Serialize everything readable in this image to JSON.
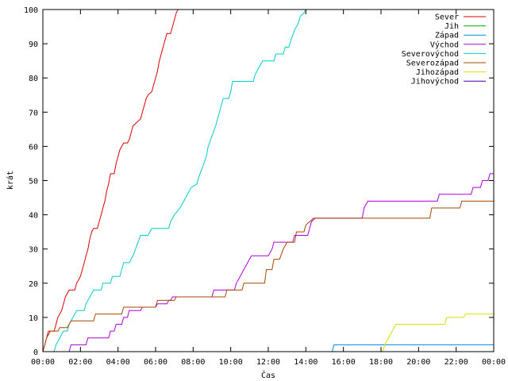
{
  "chart_data": {
    "type": "line",
    "xlabel": "Čas",
    "ylabel": "krát",
    "xlim": [
      0,
      24
    ],
    "ylim": [
      0,
      100
    ],
    "grid": false,
    "legend_position": "top-right",
    "x_ticks": [
      {
        "value": 0,
        "label": "00:00"
      },
      {
        "value": 2,
        "label": "02:00"
      },
      {
        "value": 4,
        "label": "04:00"
      },
      {
        "value": 6,
        "label": "06:00"
      },
      {
        "value": 8,
        "label": "08:00"
      },
      {
        "value": 10,
        "label": "10:00"
      },
      {
        "value": 12,
        "label": "12:00"
      },
      {
        "value": 14,
        "label": "14:00"
      },
      {
        "value": 16,
        "label": "16:00"
      },
      {
        "value": 18,
        "label": "18:00"
      },
      {
        "value": 20,
        "label": "20:00"
      },
      {
        "value": 22,
        "label": "22:00"
      },
      {
        "value": 24,
        "label": "00:00"
      }
    ],
    "y_ticks": [
      {
        "value": 0,
        "label": "0"
      },
      {
        "value": 10,
        "label": "10"
      },
      {
        "value": 20,
        "label": "20"
      },
      {
        "value": 30,
        "label": "30"
      },
      {
        "value": 40,
        "label": "40"
      },
      {
        "value": 50,
        "label": "50"
      },
      {
        "value": 60,
        "label": "60"
      },
      {
        "value": 70,
        "label": "70"
      },
      {
        "value": 80,
        "label": "80"
      },
      {
        "value": 90,
        "label": "90"
      },
      {
        "value": 100,
        "label": "100"
      }
    ],
    "series": [
      {
        "name": "Sever",
        "color": "#dd0000",
        "points": [
          [
            0,
            0
          ],
          [
            0.1,
            2
          ],
          [
            0.2,
            4
          ],
          [
            0.3,
            6
          ],
          [
            0.6,
            6
          ],
          [
            0.7,
            8
          ],
          [
            0.8,
            10
          ],
          [
            1.0,
            12
          ],
          [
            1.1,
            14
          ],
          [
            1.2,
            16
          ],
          [
            1.4,
            18
          ],
          [
            1.7,
            18
          ],
          [
            1.8,
            20
          ],
          [
            1.9,
            21
          ],
          [
            2.0,
            22
          ],
          [
            2.1,
            24
          ],
          [
            2.2,
            26
          ],
          [
            2.3,
            28
          ],
          [
            2.4,
            30
          ],
          [
            2.5,
            33
          ],
          [
            2.6,
            35
          ],
          [
            2.7,
            36
          ],
          [
            2.9,
            36
          ],
          [
            3.0,
            38
          ],
          [
            3.1,
            40
          ],
          [
            3.2,
            42
          ],
          [
            3.3,
            44
          ],
          [
            3.4,
            47
          ],
          [
            3.5,
            49
          ],
          [
            3.6,
            52
          ],
          [
            3.8,
            52
          ],
          [
            3.9,
            55
          ],
          [
            4.0,
            57
          ],
          [
            4.1,
            59
          ],
          [
            4.2,
            60
          ],
          [
            4.3,
            61
          ],
          [
            4.5,
            61
          ],
          [
            4.6,
            62
          ],
          [
            4.7,
            64
          ],
          [
            4.8,
            66
          ],
          [
            5.0,
            67
          ],
          [
            5.2,
            68
          ],
          [
            5.3,
            70
          ],
          [
            5.4,
            72
          ],
          [
            5.5,
            74
          ],
          [
            5.6,
            75
          ],
          [
            5.8,
            76
          ],
          [
            5.9,
            78
          ],
          [
            6.0,
            80
          ],
          [
            6.1,
            82
          ],
          [
            6.2,
            85
          ],
          [
            6.3,
            87
          ],
          [
            6.4,
            89
          ],
          [
            6.5,
            91
          ],
          [
            6.6,
            93
          ],
          [
            6.8,
            93
          ],
          [
            6.9,
            95
          ],
          [
            7.0,
            97
          ],
          [
            7.1,
            99
          ],
          [
            7.2,
            100
          ]
        ]
      },
      {
        "name": "Jih",
        "color": "#00aa00",
        "points": []
      },
      {
        "name": "Západ",
        "color": "#0088dd",
        "points": [
          [
            15.4,
            0
          ],
          [
            15.5,
            2
          ],
          [
            24,
            2
          ]
        ]
      },
      {
        "name": "Východ",
        "color": "#aa00dd",
        "points": [
          [
            1.4,
            0
          ],
          [
            1.5,
            2
          ],
          [
            2.3,
            2
          ],
          [
            2.4,
            4
          ],
          [
            3.5,
            4
          ],
          [
            3.6,
            6
          ],
          [
            3.8,
            6
          ],
          [
            3.9,
            8
          ],
          [
            4.2,
            8
          ],
          [
            4.3,
            10
          ],
          [
            4.5,
            10
          ],
          [
            4.6,
            12
          ],
          [
            5.2,
            12
          ],
          [
            5.3,
            13
          ],
          [
            6.0,
            13
          ],
          [
            6.1,
            14
          ],
          [
            6.6,
            14
          ],
          [
            6.7,
            15
          ],
          [
            6.8,
            15
          ],
          [
            6.9,
            16
          ],
          [
            9.0,
            16
          ],
          [
            9.1,
            18
          ],
          [
            10.2,
            18
          ],
          [
            10.3,
            20
          ],
          [
            10.5,
            22
          ],
          [
            10.7,
            24
          ],
          [
            10.9,
            26
          ],
          [
            11.1,
            28
          ],
          [
            12.0,
            28
          ],
          [
            12.2,
            30
          ],
          [
            12.3,
            32
          ],
          [
            13.3,
            32
          ],
          [
            13.4,
            34
          ],
          [
            14.1,
            34
          ],
          [
            14.2,
            36
          ],
          [
            14.3,
            38
          ],
          [
            14.5,
            39
          ],
          [
            17.0,
            39
          ],
          [
            17.1,
            42
          ],
          [
            17.3,
            44
          ],
          [
            21.0,
            44
          ],
          [
            21.1,
            46
          ],
          [
            22.8,
            46
          ],
          [
            22.9,
            48
          ],
          [
            23.3,
            48
          ],
          [
            23.4,
            50
          ],
          [
            23.7,
            50
          ],
          [
            23.8,
            52
          ],
          [
            24,
            52
          ]
        ]
      },
      {
        "name": "Severovýchod",
        "color": "#00cccc",
        "points": [
          [
            0.6,
            0
          ],
          [
            0.7,
            2
          ],
          [
            0.9,
            4
          ],
          [
            1.1,
            6
          ],
          [
            1.3,
            6
          ],
          [
            1.4,
            8
          ],
          [
            1.6,
            10
          ],
          [
            1.8,
            12
          ],
          [
            2.2,
            12
          ],
          [
            2.3,
            14
          ],
          [
            2.5,
            16
          ],
          [
            2.7,
            18
          ],
          [
            3.1,
            18
          ],
          [
            3.2,
            20
          ],
          [
            3.6,
            20
          ],
          [
            3.7,
            22
          ],
          [
            4.1,
            22
          ],
          [
            4.2,
            24
          ],
          [
            4.3,
            26
          ],
          [
            4.6,
            26
          ],
          [
            4.8,
            28
          ],
          [
            5.0,
            31
          ],
          [
            5.2,
            34
          ],
          [
            5.6,
            34
          ],
          [
            5.8,
            36
          ],
          [
            6.7,
            36
          ],
          [
            6.8,
            38
          ],
          [
            7.0,
            40
          ],
          [
            7.3,
            42
          ],
          [
            7.5,
            44
          ],
          [
            7.7,
            46
          ],
          [
            7.9,
            48
          ],
          [
            8.2,
            49
          ],
          [
            8.3,
            51
          ],
          [
            8.5,
            54
          ],
          [
            8.7,
            57
          ],
          [
            8.8,
            60
          ],
          [
            9.0,
            63
          ],
          [
            9.2,
            66
          ],
          [
            9.4,
            70
          ],
          [
            9.6,
            74
          ],
          [
            9.9,
            74
          ],
          [
            10.0,
            76
          ],
          [
            10.1,
            79
          ],
          [
            11.2,
            79
          ],
          [
            11.3,
            81
          ],
          [
            11.5,
            83
          ],
          [
            11.7,
            85
          ],
          [
            12.3,
            85
          ],
          [
            12.4,
            87
          ],
          [
            12.8,
            87
          ],
          [
            12.9,
            89
          ],
          [
            13.1,
            89
          ],
          [
            13.2,
            91
          ],
          [
            13.4,
            94
          ],
          [
            13.6,
            96
          ],
          [
            13.7,
            98
          ],
          [
            13.9,
            99
          ],
          [
            14.0,
            100
          ]
        ]
      },
      {
        "name": "Severozápad",
        "color": "#aa4400",
        "points": [
          [
            0,
            0
          ],
          [
            0.2,
            4
          ],
          [
            0.4,
            6
          ],
          [
            0.8,
            6
          ],
          [
            0.9,
            7
          ],
          [
            1.3,
            7
          ],
          [
            1.5,
            9
          ],
          [
            2.7,
            9
          ],
          [
            2.8,
            11
          ],
          [
            4.2,
            11
          ],
          [
            4.3,
            13
          ],
          [
            6.0,
            13
          ],
          [
            6.1,
            15
          ],
          [
            7.0,
            15
          ],
          [
            7.1,
            16
          ],
          [
            9.7,
            16
          ],
          [
            9.8,
            18
          ],
          [
            10.6,
            18
          ],
          [
            10.7,
            20
          ],
          [
            11.8,
            20
          ],
          [
            11.9,
            24
          ],
          [
            12.2,
            24
          ],
          [
            12.3,
            27
          ],
          [
            12.6,
            27
          ],
          [
            12.8,
            30
          ],
          [
            13.0,
            32
          ],
          [
            13.4,
            32
          ],
          [
            13.5,
            35
          ],
          [
            13.9,
            35
          ],
          [
            14.0,
            37
          ],
          [
            14.2,
            38
          ],
          [
            14.4,
            39
          ],
          [
            20.6,
            39
          ],
          [
            20.7,
            42
          ],
          [
            22.2,
            42
          ],
          [
            22.3,
            44
          ],
          [
            24,
            44
          ]
        ]
      },
      {
        "name": "Jihozápad",
        "color": "#dddd00",
        "points": [
          [
            18.1,
            0
          ],
          [
            18.2,
            2
          ],
          [
            18.4,
            4
          ],
          [
            18.6,
            6
          ],
          [
            18.8,
            8
          ],
          [
            21.4,
            8
          ],
          [
            21.5,
            10
          ],
          [
            22.4,
            10
          ],
          [
            22.5,
            11
          ],
          [
            24,
            11
          ]
        ]
      },
      {
        "name": "Jihovýchod",
        "color": "#4400aa",
        "points": []
      }
    ]
  }
}
